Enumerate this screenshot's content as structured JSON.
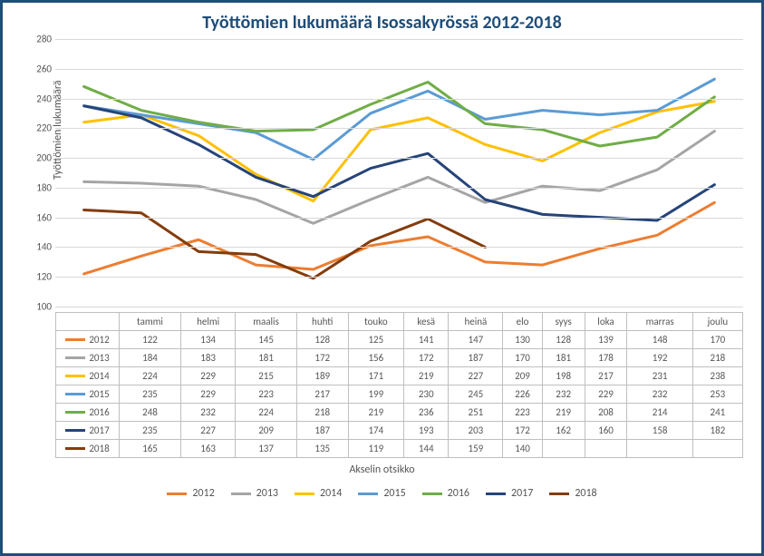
{
  "title": "Työttömien lukumäärä Isossakyrössä 2012-2018",
  "yaxis_title": "Työttömien lukumäärä",
  "xaxis_title": "Akselin otsikko",
  "categories": [
    "tammi",
    "helmi",
    "maalis",
    "huhti",
    "touko",
    "kesä",
    "heinä",
    "elo",
    "syys",
    "loka",
    "marras",
    "joulu"
  ],
  "ylim": [
    100,
    280
  ],
  "ytick_step": 20,
  "line_width": 3,
  "grid_color": "#d9d9d9",
  "border_color": "#1f4e79",
  "title_color": "#1f4e79",
  "title_fontsize": 20,
  "tick_fontsize": 11,
  "label_fontsize": 12,
  "background_color": "#ffffff",
  "series": [
    {
      "name": "2012",
      "color": "#ed7d31",
      "values": [
        122,
        134,
        145,
        128,
        125,
        141,
        147,
        130,
        128,
        139,
        148,
        170
      ]
    },
    {
      "name": "2013",
      "color": "#a5a5a5",
      "values": [
        184,
        183,
        181,
        172,
        156,
        172,
        187,
        170,
        181,
        178,
        192,
        218
      ]
    },
    {
      "name": "2014",
      "color": "#ffc000",
      "values": [
        224,
        229,
        215,
        189,
        171,
        219,
        227,
        209,
        198,
        217,
        231,
        238
      ]
    },
    {
      "name": "2015",
      "color": "#5b9bd5",
      "values": [
        235,
        229,
        223,
        217,
        199,
        230,
        245,
        226,
        232,
        229,
        232,
        253
      ]
    },
    {
      "name": "2016",
      "color": "#70ad47",
      "values": [
        248,
        232,
        224,
        218,
        219,
        236,
        251,
        223,
        219,
        208,
        214,
        241
      ]
    },
    {
      "name": "2017",
      "color": "#264478",
      "values": [
        235,
        227,
        209,
        187,
        174,
        193,
        203,
        172,
        162,
        160,
        158,
        182
      ]
    },
    {
      "name": "2018",
      "color": "#843c0c",
      "values": [
        165,
        163,
        137,
        135,
        119,
        144,
        159,
        140
      ]
    }
  ]
}
